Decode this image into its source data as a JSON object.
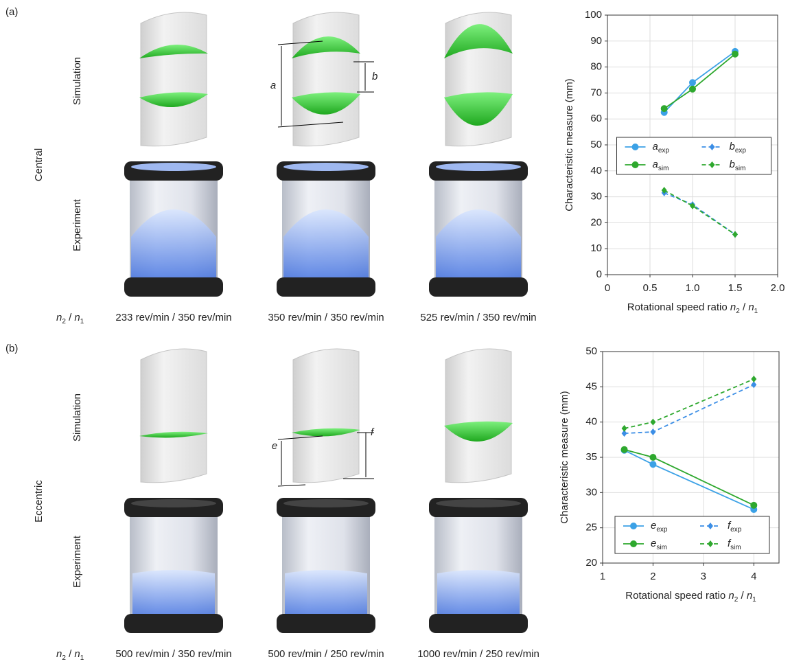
{
  "panels": [
    {
      "label": "(a)",
      "mode": "Central",
      "row_labels": [
        "Simulation",
        "Experiment"
      ],
      "ratio_label": [
        "n",
        "2",
        " / ",
        "n",
        "1"
      ],
      "captions": [
        "233 rev/min / 350 rev/min",
        "350 rev/min / 350 rev/min",
        "525 rev/min / 350 rev/min"
      ],
      "dims": [
        "a",
        "b"
      ]
    },
    {
      "label": "(b)",
      "mode": "Eccentric",
      "row_labels": [
        "Simulation",
        "Experiment"
      ],
      "ratio_label": [
        "n",
        "2",
        " / ",
        "n",
        "1"
      ],
      "captions": [
        "500 rev/min / 350 rev/min",
        "500 rev/min / 250 rev/min",
        "1000 rev/min / 250 rev/min"
      ],
      "dims": [
        "e",
        "f"
      ]
    }
  ],
  "chart_data": [
    {
      "type": "line",
      "xlabel": [
        "Rotational speed ratio ",
        "n",
        "2",
        " / ",
        "n",
        "1"
      ],
      "ylabel": "Characteristic measure (mm)",
      "xlim": [
        0,
        2
      ],
      "xticks": [
        0,
        0.5,
        {
          "value": 1,
          "label": "1.0"
        },
        1.5,
        {
          "value": 2,
          "label": "2.0"
        }
      ],
      "ylim": [
        0,
        100
      ],
      "yticks": [
        0,
        10,
        20,
        30,
        40,
        50,
        60,
        70,
        80,
        90,
        100
      ],
      "grid": true,
      "legend": "center",
      "series": [
        {
          "name": "a",
          "name_sub": "exp",
          "color": "#3ba1e6",
          "marker": "circle",
          "dashed": false,
          "x": [
            0.667,
            1,
            1.5
          ],
          "values": [
            62.5,
            74,
            86
          ]
        },
        {
          "name": "a",
          "name_sub": "sim",
          "color": "#2ea82e",
          "marker": "circle",
          "dashed": false,
          "x": [
            0.667,
            1,
            1.5
          ],
          "values": [
            64,
            71.5,
            85
          ]
        },
        {
          "name": "b",
          "name_sub": "exp",
          "color": "#3b8ee6",
          "marker": "diamond",
          "dashed": true,
          "x": [
            0.667,
            1,
            1.5
          ],
          "values": [
            31.5,
            27,
            15.5
          ]
        },
        {
          "name": "b",
          "name_sub": "sim",
          "color": "#2ea82e",
          "marker": "diamond",
          "dashed": true,
          "x": [
            0.667,
            1,
            1.5
          ],
          "values": [
            32.5,
            26.5,
            15.5
          ]
        }
      ]
    },
    {
      "type": "line",
      "xlabel": [
        "Rotational speed ratio ",
        "n",
        "2",
        " / ",
        "n",
        "1"
      ],
      "ylabel": "Characteristic measure (mm)",
      "xlim": [
        1,
        4.5
      ],
      "xticks": [
        1,
        2,
        3,
        4
      ],
      "ylim": [
        20,
        50
      ],
      "yticks": [
        20,
        25,
        30,
        35,
        40,
        45,
        50
      ],
      "grid": true,
      "legend": "lower center",
      "series": [
        {
          "name": "e",
          "name_sub": "exp",
          "color": "#3ba1e6",
          "marker": "circle",
          "dashed": false,
          "x": [
            1.43,
            2,
            4
          ],
          "values": [
            36,
            34,
            27.6
          ]
        },
        {
          "name": "e",
          "name_sub": "sim",
          "color": "#2ea82e",
          "marker": "circle",
          "dashed": false,
          "x": [
            1.43,
            2,
            4
          ],
          "values": [
            36.1,
            35,
            28.2
          ]
        },
        {
          "name": "f",
          "name_sub": "exp",
          "color": "#3b8ee6",
          "marker": "diamond",
          "dashed": true,
          "x": [
            1.43,
            2,
            4
          ],
          "values": [
            38.4,
            38.6,
            45.3
          ]
        },
        {
          "name": "f",
          "name_sub": "sim",
          "color": "#2ea82e",
          "marker": "diamond",
          "dashed": true,
          "x": [
            1.43,
            2,
            4
          ],
          "values": [
            39.1,
            40,
            46.1
          ]
        }
      ]
    }
  ]
}
